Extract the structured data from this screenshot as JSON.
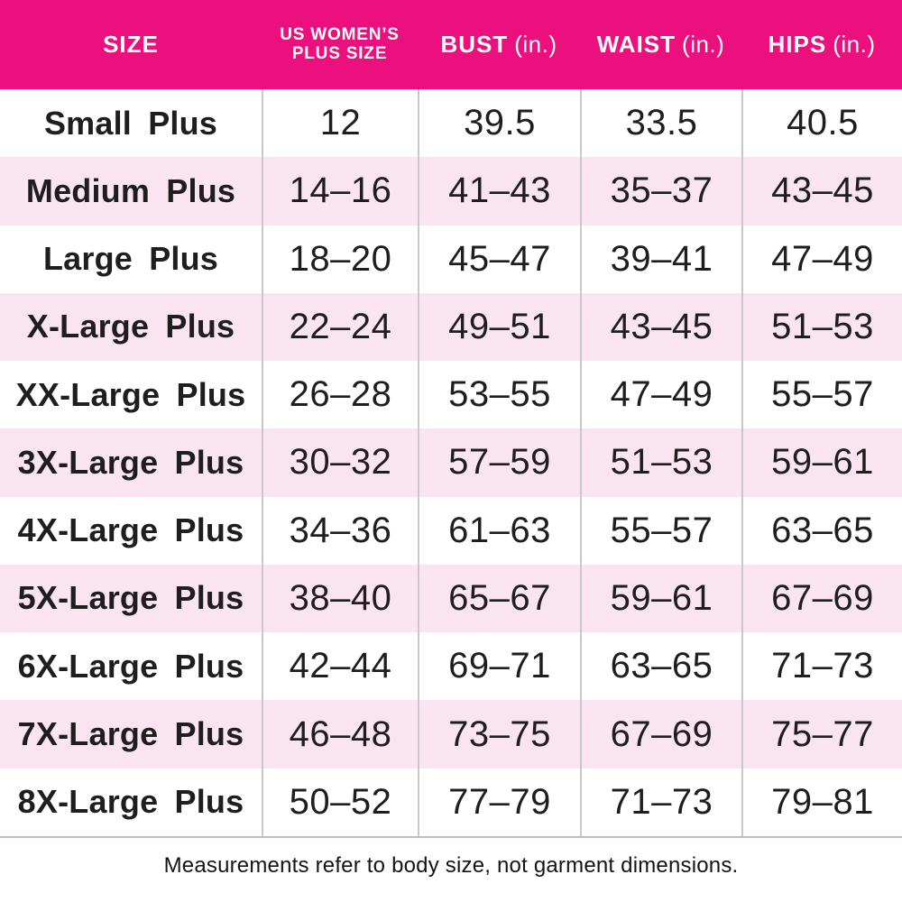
{
  "colors": {
    "header_bg": "#EB107D",
    "header_text": "#FFFFFF",
    "row_bg": "#FFFFFF",
    "row_alt_bg": "#FAE4F0",
    "body_text": "#1E1E1E",
    "divider": "#C8C8C8"
  },
  "header": {
    "cols": [
      {
        "label": "SIZE"
      },
      {
        "label": "US WOMEN’S",
        "line2": "PLUS SIZE"
      },
      {
        "label": "BUST",
        "unit": "(in.)"
      },
      {
        "label": "WAIST",
        "unit": "(in.)"
      },
      {
        "label": "HIPS",
        "unit": "(in.)"
      }
    ]
  },
  "chart_data": {
    "type": "table",
    "title": "Women's plus size chart",
    "columns": [
      "SIZE",
      "US WOMEN’S PLUS SIZE",
      "BUST (in.)",
      "WAIST (in.)",
      "HIPS (in.)"
    ],
    "rows": [
      [
        "Small Plus",
        "12",
        "39.5",
        "33.5",
        "40.5"
      ],
      [
        "Medium Plus",
        "14–16",
        "41–43",
        "35–37",
        "43–45"
      ],
      [
        "Large Plus",
        "18–20",
        "45–47",
        "39–41",
        "47–49"
      ],
      [
        "X-Large Plus",
        "22–24",
        "49–51",
        "43–45",
        "51–53"
      ],
      [
        "XX-Large Plus",
        "26–28",
        "53–55",
        "47–49",
        "55–57"
      ],
      [
        "3X-Large Plus",
        "30–32",
        "57–59",
        "51–53",
        "59–61"
      ],
      [
        "4X-Large Plus",
        "34–36",
        "61–63",
        "55–57",
        "63–65"
      ],
      [
        "5X-Large Plus",
        "38–40",
        "65–67",
        "59–61",
        "67–69"
      ],
      [
        "6X-Large Plus",
        "42–44",
        "69–71",
        "63–65",
        "71–73"
      ],
      [
        "7X-Large Plus",
        "46–48",
        "73–75",
        "67–69",
        "75–77"
      ],
      [
        "8X-Large Plus",
        "50–52",
        "77–79",
        "71–73",
        "79–81"
      ]
    ]
  },
  "footer": {
    "note": "Measurements refer to body size, not garment dimensions."
  }
}
